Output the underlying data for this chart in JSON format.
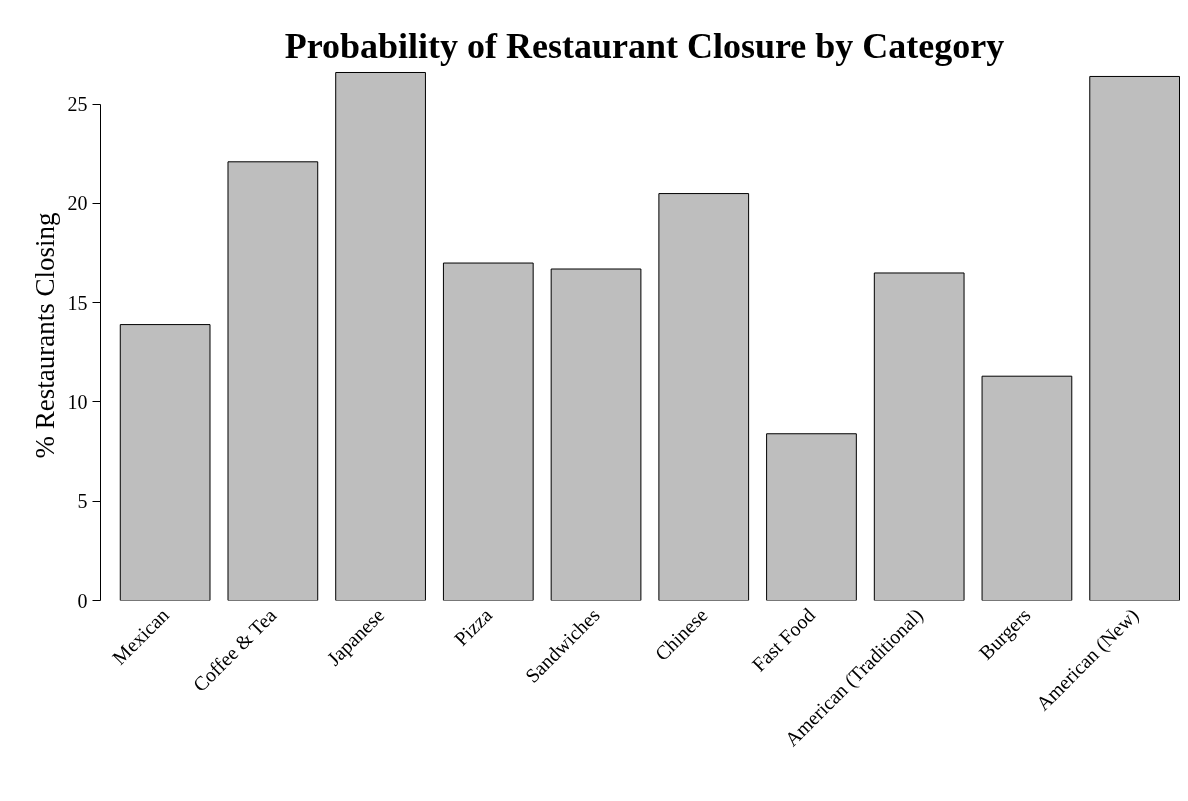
{
  "chart_data": {
    "type": "bar",
    "title": "Probability of Restaurant Closure by Category",
    "ylabel": "% Restaurants Closing",
    "categories": [
      "Mexican",
      "Coffee & Tea",
      "Japanese",
      "Pizza",
      "Sandwiches",
      "Chinese",
      "Fast Food",
      "American (Traditional)",
      "Burgers",
      "American (New)"
    ],
    "values": [
      13.9,
      22.1,
      26.6,
      17.0,
      16.7,
      20.5,
      8.4,
      16.5,
      11.3,
      26.4
    ],
    "color": "#bebebe",
    "ylim": [
      0,
      26.7
    ],
    "yticks": [
      0,
      5,
      10,
      15,
      20,
      25
    ],
    "grid": false
  }
}
